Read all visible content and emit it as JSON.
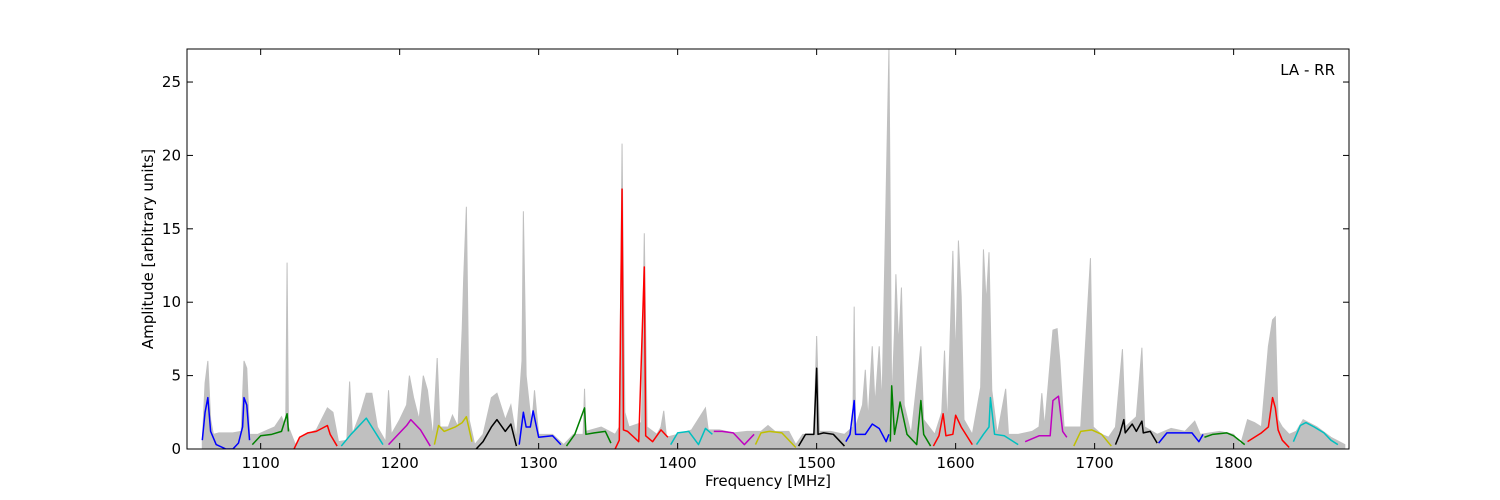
{
  "chart_data": {
    "type": "line",
    "xlabel": "Frequency [MHz]",
    "ylabel": "Amplitude [arbitrary units]",
    "annotation": "LA - RR",
    "xlim": [
      1047,
      1883
    ],
    "ylim": [
      0,
      27.25
    ],
    "xticks": [
      1100,
      1200,
      1300,
      1400,
      1500,
      1600,
      1700,
      1800
    ],
    "yticks": [
      0,
      5,
      10,
      15,
      20,
      25
    ],
    "series": [
      {
        "color": "#c0c0c0",
        "fill": true,
        "x": [
          1058,
          1060,
          1062,
          1064,
          1066,
          1070,
          1080,
          1086,
          1088,
          1090,
          1092,
          1098,
          1105,
          1110,
          1115,
          1118,
          1119,
          1120,
          1125,
          1130,
          1140,
          1148,
          1152,
          1156,
          1162,
          1164,
          1166,
          1172,
          1176,
          1180,
          1184,
          1190,
          1192,
          1194,
          1200,
          1205,
          1207,
          1210,
          1214,
          1217,
          1220,
          1224,
          1227,
          1229,
          1235,
          1238,
          1242,
          1245,
          1246,
          1248,
          1250,
          1254,
          1260,
          1266,
          1270,
          1276,
          1280,
          1284,
          1288,
          1289,
          1291,
          1295,
          1297,
          1300,
          1310,
          1318,
          1325,
          1332,
          1333,
          1334,
          1345,
          1355,
          1358,
          1360,
          1362,
          1365,
          1374,
          1376,
          1378,
          1385,
          1388,
          1390,
          1392,
          1400,
          1410,
          1420,
          1422,
          1430,
          1440,
          1450,
          1460,
          1465,
          1470,
          1480,
          1485,
          1490,
          1498,
          1500,
          1502,
          1510,
          1520,
          1526,
          1527,
          1528,
          1533,
          1535,
          1537,
          1540,
          1542,
          1545,
          1547,
          1552,
          1554,
          1556,
          1557,
          1559,
          1561,
          1563,
          1568,
          1575,
          1577,
          1585,
          1590,
          1592,
          1594,
          1598,
          1600,
          1602,
          1604,
          1606,
          1612,
          1618,
          1620,
          1622,
          1624,
          1626,
          1630,
          1636,
          1638,
          1645,
          1655,
          1660,
          1662,
          1664,
          1670,
          1673,
          1675,
          1678,
          1690,
          1697,
          1699,
          1705,
          1710,
          1715,
          1720,
          1722,
          1730,
          1734,
          1736,
          1745,
          1755,
          1765,
          1772,
          1776,
          1790,
          1800,
          1805,
          1810,
          1815,
          1820,
          1825,
          1828,
          1830,
          1832,
          1835,
          1840,
          1845,
          1850,
          1860,
          1870,
          1880
        ],
        "values": [
          0.5,
          4.5,
          6.0,
          2,
          1.0,
          1.1,
          1.1,
          1.2,
          6.0,
          5.5,
          1.0,
          1.0,
          1.3,
          1.5,
          2.2,
          1.5,
          12.7,
          1.5,
          0.3,
          0.9,
          1.3,
          2.8,
          2.5,
          0.5,
          0.6,
          4.6,
          1.0,
          2.5,
          3.8,
          3.8,
          1.5,
          0.5,
          4.0,
          1.0,
          2.0,
          3.0,
          5.0,
          3.5,
          2.0,
          5.0,
          4.0,
          0.8,
          6.2,
          1.5,
          1.5,
          2.3,
          1.5,
          8.2,
          11.5,
          16.5,
          2.0,
          0.3,
          1.0,
          3.5,
          3.8,
          2.0,
          3.0,
          0.7,
          6.0,
          16.2,
          5.0,
          1.5,
          4.0,
          1.0,
          1.0,
          0.3,
          1.0,
          1.0,
          4.1,
          1.2,
          1.5,
          1.0,
          1.5,
          20.8,
          2.5,
          1.5,
          1.8,
          14.7,
          1.5,
          1.0,
          1.5,
          2.6,
          0.8,
          1.0,
          1.3,
          2.8,
          1.3,
          1.3,
          1.1,
          1.2,
          1.2,
          1.6,
          1.2,
          1.2,
          0.3,
          1.0,
          1.0,
          7.7,
          1.2,
          1.2,
          1.0,
          1.5,
          9.7,
          1.5,
          3.0,
          5.4,
          2.0,
          7.0,
          3.0,
          7.0,
          3.0,
          27.2,
          3.0,
          8.0,
          11.9,
          7.0,
          11.0,
          3.0,
          1.0,
          7.0,
          2.0,
          1.0,
          2.5,
          6.7,
          1.5,
          13.5,
          6.0,
          14.2,
          10.4,
          2.0,
          1.0,
          4.2,
          13.6,
          9.9,
          13.4,
          4.0,
          1.0,
          4.1,
          1.0,
          1.0,
          1.2,
          1.5,
          3.8,
          1.5,
          8.1,
          8.2,
          6.0,
          1.5,
          1.5,
          13.0,
          1.5,
          1.0,
          0.8,
          1.5,
          6.8,
          1.5,
          2.2,
          6.9,
          1.5,
          1.0,
          1.4,
          1.2,
          1.9,
          1.0,
          1.2,
          1.0,
          0.3,
          2.0,
          1.8,
          1.5,
          7.0,
          8.8,
          9.0,
          2.0,
          1.5,
          1.0,
          1.2,
          2.0,
          1.5,
          0.8,
          0.3
        ]
      },
      {
        "color": "#0000ff",
        "x": [
          1058,
          1060,
          1062,
          1064,
          1068,
          1075,
          1080,
          1084,
          1087,
          1088,
          1090,
          1092
        ],
        "values": [
          0.6,
          2.5,
          3.5,
          1.2,
          0.3,
          0.0,
          0.0,
          0.4,
          1.5,
          3.5,
          3.0,
          0.6
        ]
      },
      {
        "color": "#008000",
        "x": [
          1094,
          1100,
          1108,
          1115,
          1119,
          1120
        ],
        "values": [
          0.3,
          0.9,
          1.0,
          1.2,
          2.4,
          1.2
        ]
      },
      {
        "color": "#ff0000",
        "x": [
          1124,
          1128,
          1134,
          1140,
          1148,
          1150,
          1155
        ],
        "values": [
          0.0,
          0.8,
          1.1,
          1.2,
          1.6,
          1.0,
          0.2
        ]
      },
      {
        "color": "#00bfbf",
        "x": [
          1158,
          1165,
          1170,
          1176,
          1182,
          1188
        ],
        "values": [
          0.2,
          1.0,
          1.5,
          2.1,
          1.2,
          0.3
        ]
      },
      {
        "color": "#bf00bf",
        "x": [
          1192,
          1198,
          1205,
          1208,
          1215,
          1222
        ],
        "values": [
          0.3,
          0.9,
          1.6,
          2.0,
          1.3,
          0.2
        ]
      },
      {
        "color": "#bfbf00",
        "x": [
          1225,
          1228,
          1232,
          1240,
          1245,
          1248,
          1252
        ],
        "values": [
          0.3,
          1.6,
          1.2,
          1.5,
          1.8,
          2.2,
          0.5
        ]
      },
      {
        "color": "#000000",
        "x": [
          1255,
          1260,
          1266,
          1270,
          1276,
          1280,
          1284
        ],
        "values": [
          0.0,
          0.5,
          1.5,
          2.0,
          1.2,
          1.7,
          0.2
        ]
      },
      {
        "color": "#0000ff",
        "x": [
          1286,
          1289,
          1291,
          1294,
          1296,
          1300,
          1310,
          1316
        ],
        "values": [
          0.3,
          2.5,
          1.5,
          1.5,
          2.6,
          0.8,
          0.9,
          0.3
        ]
      },
      {
        "color": "#008000",
        "x": [
          1320,
          1326,
          1333,
          1334,
          1340,
          1348,
          1352
        ],
        "values": [
          0.2,
          1.0,
          2.8,
          1.0,
          1.1,
          1.2,
          0.4
        ]
      },
      {
        "color": "#ff0000",
        "x": [
          1355,
          1358,
          1360,
          1361,
          1364,
          1372,
          1376,
          1377,
          1382,
          1388,
          1393
        ],
        "values": [
          0.0,
          0.6,
          17.7,
          1.3,
          1.2,
          0.5,
          12.4,
          0.9,
          0.5,
          1.3,
          0.8
        ]
      },
      {
        "color": "#00bfbf",
        "x": [
          1395,
          1400,
          1408,
          1415,
          1420,
          1425
        ],
        "values": [
          0.3,
          1.1,
          1.2,
          0.3,
          1.4,
          1.0
        ]
      },
      {
        "color": "#bf00bf",
        "x": [
          1426,
          1432,
          1440,
          1448,
          1455
        ],
        "values": [
          1.2,
          1.2,
          1.1,
          0.3,
          1.0
        ]
      },
      {
        "color": "#bfbf00",
        "x": [
          1456,
          1460,
          1466,
          1475,
          1482,
          1485
        ],
        "values": [
          0.3,
          1.1,
          1.2,
          1.1,
          0.4,
          0.1
        ]
      },
      {
        "color": "#000000",
        "x": [
          1487,
          1492,
          1498,
          1500,
          1501,
          1505,
          1512,
          1520
        ],
        "values": [
          0.2,
          1.0,
          1.0,
          5.5,
          1.0,
          1.1,
          1.0,
          0.2
        ]
      },
      {
        "color": "#0000ff",
        "x": [
          1521,
          1524,
          1527,
          1528,
          1535,
          1540,
          1545,
          1550,
          1552
        ],
        "values": [
          0.5,
          1.0,
          3.3,
          1.0,
          1.0,
          1.7,
          1.4,
          0.5,
          1.0
        ]
      },
      {
        "color": "#008000",
        "x": [
          1553,
          1554,
          1556,
          1558,
          1560,
          1565,
          1572,
          1575,
          1577,
          1582
        ],
        "values": [
          0.5,
          4.3,
          1.0,
          2.0,
          3.2,
          1.0,
          0.3,
          3.3,
          1.0,
          0.2
        ]
      },
      {
        "color": "#ff0000",
        "x": [
          1584,
          1588,
          1591,
          1593,
          1598,
          1600,
          1604,
          1612
        ],
        "values": [
          0.2,
          0.9,
          2.4,
          0.9,
          1.0,
          2.3,
          1.5,
          0.3
        ]
      },
      {
        "color": "#00bfbf",
        "x": [
          1615,
          1620,
          1624,
          1625,
          1628,
          1635,
          1645
        ],
        "values": [
          0.3,
          1.0,
          1.5,
          3.5,
          1.0,
          0.9,
          0.3
        ]
      },
      {
        "color": "#bf00bf",
        "x": [
          1650,
          1660,
          1668,
          1670,
          1674,
          1677,
          1680
        ],
        "values": [
          0.5,
          0.9,
          0.9,
          3.3,
          3.6,
          1.2,
          0.8
        ]
      },
      {
        "color": "#bfbf00",
        "x": [
          1685,
          1690,
          1698,
          1705,
          1712
        ],
        "values": [
          0.2,
          1.2,
          1.3,
          1.0,
          0.2
        ]
      },
      {
        "color": "#000000",
        "x": [
          1715,
          1718,
          1721,
          1722,
          1727,
          1730,
          1734,
          1735,
          1740,
          1745
        ],
        "values": [
          0.3,
          1.0,
          2.0,
          1.1,
          1.7,
          1.2,
          1.9,
          1.1,
          1.2,
          0.4
        ]
      },
      {
        "color": "#0000ff",
        "x": [
          1746,
          1752,
          1760,
          1770,
          1775,
          1778
        ],
        "values": [
          0.4,
          1.1,
          1.1,
          1.1,
          0.5,
          1.0
        ]
      },
      {
        "color": "#008000",
        "x": [
          1779,
          1785,
          1795,
          1800,
          1808
        ],
        "values": [
          0.8,
          1.0,
          1.1,
          0.9,
          0.3
        ]
      },
      {
        "color": "#ff0000",
        "x": [
          1810,
          1815,
          1820,
          1825,
          1828,
          1830,
          1832,
          1835,
          1840
        ],
        "values": [
          0.5,
          0.8,
          1.1,
          1.5,
          3.5,
          2.8,
          1.3,
          0.6,
          0.1
        ]
      },
      {
        "color": "#00bfbf",
        "x": [
          1843,
          1848,
          1852,
          1858,
          1865,
          1870,
          1875
        ],
        "values": [
          0.5,
          1.6,
          1.8,
          1.5,
          1.1,
          0.6,
          0.3
        ]
      }
    ]
  }
}
